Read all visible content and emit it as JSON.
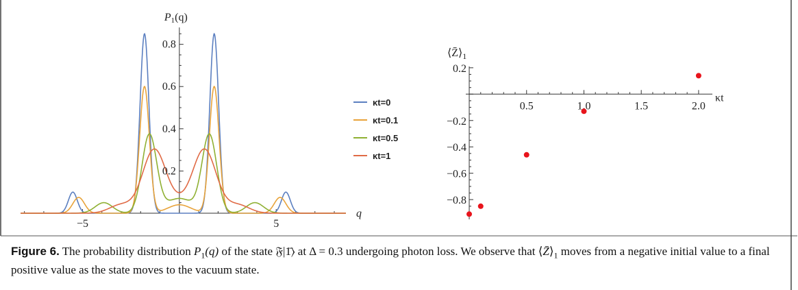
{
  "figure": {
    "label": "Figure 6.",
    "caption_parts": [
      {
        "t": " The probability distribution "
      },
      {
        "t": "P",
        "italic": true
      },
      {
        "t": "1",
        "sub": true
      },
      {
        "t": "(q)",
        "italic": true
      },
      {
        "t": " of the state 𝔉|1̄⟩ at Δ = 0.3 undergoing photon loss. We observe that ⟨"
      },
      {
        "t": "Z̄",
        "italic": true
      },
      {
        "t": "⟩"
      },
      {
        "t": "1",
        "sub": true
      },
      {
        "t": " moves from a negative initial value to a final positive value as the state moves to the vacuum state."
      }
    ]
  },
  "chart_data": [
    {
      "type": "line",
      "ylabel_main": "P",
      "ylabel_sub": "1",
      "ylabel_tail": "(q)",
      "xlabel": "q",
      "xlim": [
        -8.2,
        8.6
      ],
      "ylim": [
        0,
        0.88
      ],
      "xticks": [
        {
          "v": -5,
          "label": "−5"
        },
        {
          "v": 5,
          "label": "5"
        }
      ],
      "yticks": [
        {
          "v": 0.2,
          "label": "0.2"
        },
        {
          "v": 0.4,
          "label": "0.4"
        },
        {
          "v": 0.6,
          "label": "0.6"
        },
        {
          "v": 0.8,
          "label": "0.8"
        }
      ],
      "series": [
        {
          "name": "κt=0",
          "color": "#5b7fc0",
          "peaks": [
            {
              "mu": -1.8,
              "sigma": 0.23,
              "amp": 0.85
            },
            {
              "mu": 1.8,
              "sigma": 0.23,
              "amp": 0.85
            },
            {
              "mu": -5.5,
              "sigma": 0.23,
              "amp": 0.1
            },
            {
              "mu": 5.5,
              "sigma": 0.23,
              "amp": 0.1
            }
          ]
        },
        {
          "name": "κt=0.1",
          "color": "#e8a33a",
          "peaks": [
            {
              "mu": -1.8,
              "sigma": 0.25,
              "amp": 0.6
            },
            {
              "mu": 1.8,
              "sigma": 0.25,
              "amp": 0.6
            },
            {
              "mu": -5.2,
              "sigma": 0.3,
              "amp": 0.075
            },
            {
              "mu": 5.2,
              "sigma": 0.3,
              "amp": 0.075
            },
            {
              "mu": 0,
              "sigma": 0.6,
              "amp": 0.04
            }
          ]
        },
        {
          "name": "κt=0.5",
          "color": "#8fb032",
          "peaks": [
            {
              "mu": -1.55,
              "sigma": 0.38,
              "amp": 0.37
            },
            {
              "mu": 1.55,
              "sigma": 0.38,
              "amp": 0.37
            },
            {
              "mu": -3.9,
              "sigma": 0.45,
              "amp": 0.05
            },
            {
              "mu": 3.9,
              "sigma": 0.45,
              "amp": 0.05
            },
            {
              "mu": 0,
              "sigma": 0.7,
              "amp": 0.07
            }
          ]
        },
        {
          "name": "κt=1",
          "color": "#e06a45",
          "peaks": [
            {
              "mu": -1.3,
              "sigma": 0.6,
              "amp": 0.3
            },
            {
              "mu": 1.3,
              "sigma": 0.6,
              "amp": 0.3
            },
            {
              "mu": -3.0,
              "sigma": 0.6,
              "amp": 0.04
            },
            {
              "mu": 3.0,
              "sigma": 0.6,
              "amp": 0.04
            },
            {
              "mu": 0,
              "sigma": 0.6,
              "amp": 0.04
            }
          ]
        }
      ],
      "legend_position": "right"
    },
    {
      "type": "scatter",
      "ylabel": "⟨Z̄⟩",
      "ylabel_sub": "1",
      "xlabel": "κt",
      "xlim": [
        -0.03,
        2.12
      ],
      "ylim": [
        -0.95,
        0.22
      ],
      "xticks": [
        {
          "v": 0.5,
          "label": "0.5"
        },
        {
          "v": 1.0,
          "label": "1.0"
        },
        {
          "v": 1.5,
          "label": "1.5"
        },
        {
          "v": 2.0,
          "label": "2.0"
        }
      ],
      "yticks": [
        {
          "v": 0.2,
          "label": "0.2"
        },
        {
          "v": -0.2,
          "label": "−0.2"
        },
        {
          "v": -0.4,
          "label": "−0.4"
        },
        {
          "v": -0.6,
          "label": "−0.6"
        },
        {
          "v": -0.8,
          "label": "−0.8"
        }
      ],
      "points": [
        {
          "x": 0.0,
          "y": -0.91
        },
        {
          "x": 0.1,
          "y": -0.85
        },
        {
          "x": 0.5,
          "y": -0.46
        },
        {
          "x": 1.0,
          "y": -0.13
        },
        {
          "x": 2.0,
          "y": 0.14
        }
      ],
      "marker_color": "#e8141c"
    }
  ]
}
